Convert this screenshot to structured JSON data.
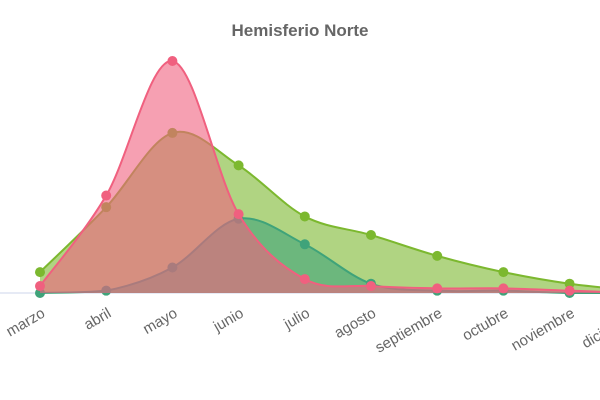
{
  "chart_data": {
    "type": "area",
    "title": "Hemisferio Norte",
    "categories": [
      "marzo",
      "abril",
      "mayo",
      "junio",
      "julio",
      "agosto",
      "septiembre",
      "octubre",
      "noviembre",
      "diciembre"
    ],
    "ylim": [
      0,
      100
    ],
    "series": [
      {
        "color": "#7cb82f",
        "values": [
          9,
          37,
          69,
          55,
          33,
          25,
          16,
          9,
          4,
          1
        ]
      },
      {
        "color": "#3fa37a",
        "values": [
          0,
          1,
          11,
          32,
          21,
          4,
          1,
          1,
          0,
          0
        ]
      },
      {
        "color": "#f0607f",
        "values": [
          3,
          42,
          100,
          34,
          6,
          3,
          2,
          2,
          1,
          0
        ]
      }
    ]
  }
}
